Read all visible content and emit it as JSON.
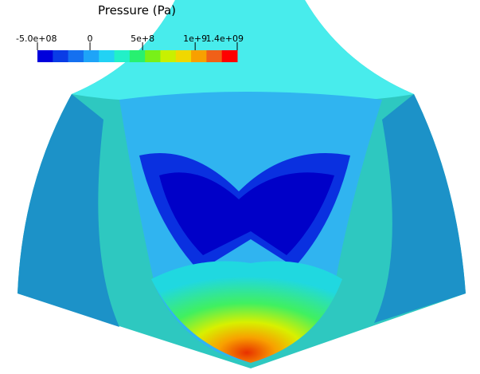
{
  "legend": {
    "title": "Pressure (Pa)",
    "range": [
      -500000000,
      1400000000
    ],
    "ticks": [
      {
        "value": -500000000,
        "label": "-5.0e+08"
      },
      {
        "value": 0,
        "label": "0"
      },
      {
        "value": 500000000,
        "label": "5e+8"
      },
      {
        "value": 1000000000,
        "label": "1e+9"
      },
      {
        "value": 1400000000,
        "label": "1.4e+09"
      }
    ],
    "colors": [
      "#0000dc",
      "#0a3ce6",
      "#1470f0",
      "#1ea4f8",
      "#22d2f4",
      "#22f0c8",
      "#28f070",
      "#78f018",
      "#c8f000",
      "#f0d800",
      "#f8a000",
      "#f06018",
      "#ff0000"
    ]
  }
}
